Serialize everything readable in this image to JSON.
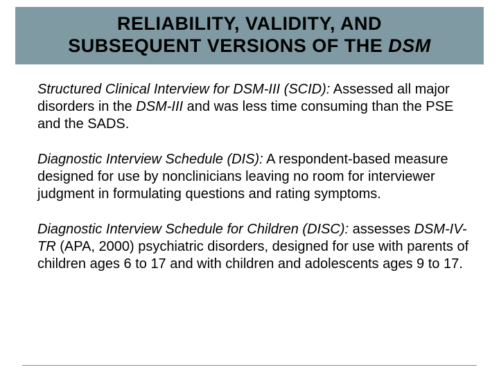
{
  "header": {
    "title_line1": "RELIABILITY, VALIDITY, AND",
    "title_line2_a": "SUBSEQUENT VERSIONS OF THE ",
    "title_line2_b": "DSM",
    "background_color": "#7f9aa3",
    "text_color": "#000000",
    "font_size_pt": 27,
    "font_weight": 900
  },
  "bullets": [
    {
      "lead": "Structured Clinical Interview for DSM-III (SCID):",
      "rest_a": " Assessed all major disorders in the ",
      "dsm": "DSM-III",
      "rest_b": " and was less time consuming than the PSE and the SADS."
    },
    {
      "lead": "Diagnostic Interview Schedule (DIS):",
      "rest_a": " A respondent-based measure designed for use by nonclinicians leaving no room for interviewer judgment in formulating questions and rating symptoms.",
      "dsm": "",
      "rest_b": ""
    },
    {
      "lead": "Diagnostic Interview Schedule for Children (DISC):",
      "rest_a": " assesses ",
      "dsm": "DSM-IV-TR",
      "rest_b": " (APA, 2000) psychiatric disorders, designed for use with parents of children ages 6 to 17 and with children and adolescents ages 9 to 17."
    }
  ],
  "body_font_size_pt": 20,
  "body_text_color": "#000000",
  "bullet_marker": "٠",
  "divider_color": "#888888",
  "background_color": "#ffffff"
}
